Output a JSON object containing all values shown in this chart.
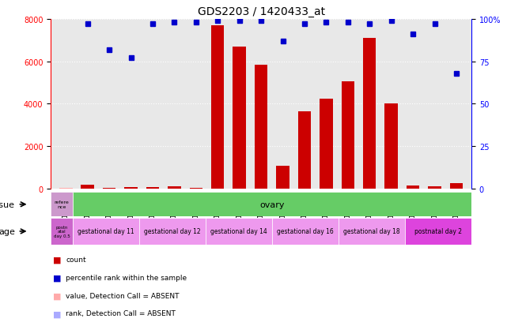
{
  "title": "GDS2203 / 1420433_at",
  "samples": [
    "GSM120857",
    "GSM120854",
    "GSM120855",
    "GSM120856",
    "GSM120851",
    "GSM120852",
    "GSM120853",
    "GSM120848",
    "GSM120849",
    "GSM120850",
    "GSM120845",
    "GSM120846",
    "GSM120847",
    "GSM120842",
    "GSM120843",
    "GSM120844",
    "GSM120839",
    "GSM120840",
    "GSM120841"
  ],
  "bar_values": [
    50,
    200,
    60,
    80,
    80,
    120,
    60,
    7700,
    6700,
    5850,
    1100,
    3650,
    4250,
    5050,
    7100,
    4000,
    150,
    100,
    280
  ],
  "bar_absent": [
    true,
    false,
    false,
    false,
    false,
    false,
    false,
    false,
    false,
    false,
    false,
    false,
    false,
    false,
    false,
    false,
    false,
    false,
    false
  ],
  "rank_values": [
    null,
    97,
    82,
    77,
    97,
    98,
    98,
    99,
    99,
    99,
    87,
    97,
    98,
    98,
    97,
    99,
    91,
    97,
    68
  ],
  "rank_absent": [
    true,
    false,
    false,
    false,
    false,
    false,
    false,
    false,
    false,
    false,
    false,
    false,
    false,
    false,
    false,
    false,
    false,
    false,
    false
  ],
  "ylim_left": [
    0,
    8000
  ],
  "ylim_right": [
    0,
    100
  ],
  "yticks_left": [
    0,
    2000,
    4000,
    6000,
    8000
  ],
  "yticks_right": [
    0,
    25,
    50,
    75,
    100
  ],
  "bar_color": "#cc0000",
  "bar_absent_color": "#ffaaaa",
  "dot_color": "#0000cc",
  "dot_absent_color": "#aaaaff",
  "tissue_label": "tissue",
  "age_label": "age",
  "tissue_ref_color": "#cc99cc",
  "tissue_ref_text": "refere\nnce",
  "tissue_ovary_color": "#66cc66",
  "tissue_ovary_text": "ovary",
  "age_ref_color": "#cc66cc",
  "age_ref_text": "postn\natal\nday 0.5",
  "age_groups": [
    {
      "text": "gestational day 11",
      "color": "#ee99ee",
      "count": 3
    },
    {
      "text": "gestational day 12",
      "color": "#ee99ee",
      "count": 3
    },
    {
      "text": "gestational day 14",
      "color": "#ee99ee",
      "count": 3
    },
    {
      "text": "gestational day 16",
      "color": "#ee99ee",
      "count": 3
    },
    {
      "text": "gestational day 18",
      "color": "#ee99ee",
      "count": 3
    },
    {
      "text": "postnatal day 2",
      "color": "#dd44dd",
      "count": 3
    }
  ],
  "legend": [
    {
      "color": "#cc0000",
      "label": "count"
    },
    {
      "color": "#0000cc",
      "label": "percentile rank within the sample"
    },
    {
      "color": "#ffaaaa",
      "label": "value, Detection Call = ABSENT"
    },
    {
      "color": "#aaaaff",
      "label": "rank, Detection Call = ABSENT"
    }
  ],
  "bg_color": "#ffffff",
  "plot_bg_color": "#e8e8e8",
  "grid_color": "#ffffff"
}
